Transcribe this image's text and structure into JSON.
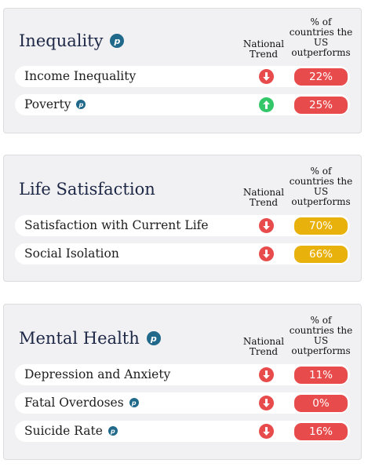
{
  "colors": {
    "bad": "#e84b4b",
    "good": "#34c76a",
    "mid": "#e9b10c",
    "title": "#1d2746",
    "badge": "#21698a"
  },
  "column_headers": {
    "trend": "National Trend",
    "pct": "% of countries the US outperforms"
  },
  "sections": [
    {
      "title": "Inequality",
      "has_badge": true,
      "rows": [
        {
          "label": "Income Inequality",
          "has_badge": false,
          "trend": "down",
          "pct": "22%",
          "tone": "bad"
        },
        {
          "label": "Poverty",
          "has_badge": true,
          "trend": "up",
          "pct": "25%",
          "tone": "bad"
        }
      ]
    },
    {
      "title": "Life Satisfaction",
      "has_badge": false,
      "rows": [
        {
          "label": "Satisfaction with Current Life",
          "has_badge": false,
          "trend": "down",
          "pct": "70%",
          "tone": "mid"
        },
        {
          "label": "Social Isolation",
          "has_badge": false,
          "trend": "down",
          "pct": "66%",
          "tone": "mid"
        }
      ]
    },
    {
      "title": "Mental Health",
      "has_badge": true,
      "rows": [
        {
          "label": "Depression and Anxiety",
          "has_badge": false,
          "trend": "down",
          "pct": "11%",
          "tone": "bad"
        },
        {
          "label": "Fatal Overdoses",
          "has_badge": true,
          "trend": "down",
          "pct": "0%",
          "tone": "bad"
        },
        {
          "label": "Suicide Rate",
          "has_badge": true,
          "trend": "down",
          "pct": "16%",
          "tone": "bad"
        }
      ]
    }
  ],
  "badge_letter": "p"
}
